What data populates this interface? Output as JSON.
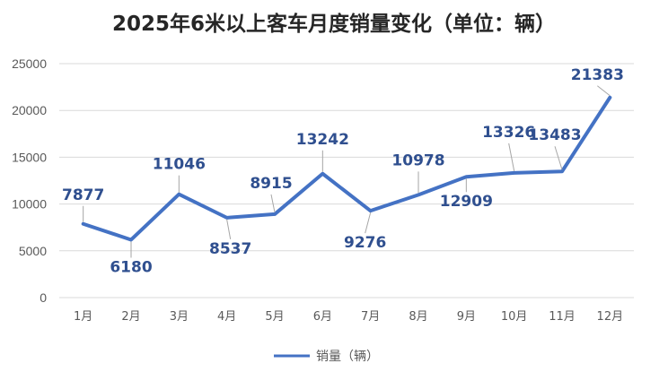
{
  "chart_data": {
    "type": "line",
    "title": "2025年6米以上客车月度销量变化（单位：辆）",
    "xlabel": "",
    "ylabel": "",
    "categories": [
      "1月",
      "2月",
      "3月",
      "4月",
      "5月",
      "6月",
      "7月",
      "8月",
      "9月",
      "10月",
      "11月",
      "12月"
    ],
    "series": [
      {
        "name": "销量（辆）",
        "values": [
          7877,
          6180,
          11046,
          8537,
          8915,
          13242,
          9276,
          10978,
          12909,
          13326,
          13483,
          21383
        ],
        "color": "#4472c4"
      }
    ],
    "ylim": [
      0,
      25000
    ],
    "yticks": [
      0,
      5000,
      10000,
      15000,
      20000,
      25000
    ],
    "grid": true,
    "legend": "bottom",
    "data_labels": true
  }
}
